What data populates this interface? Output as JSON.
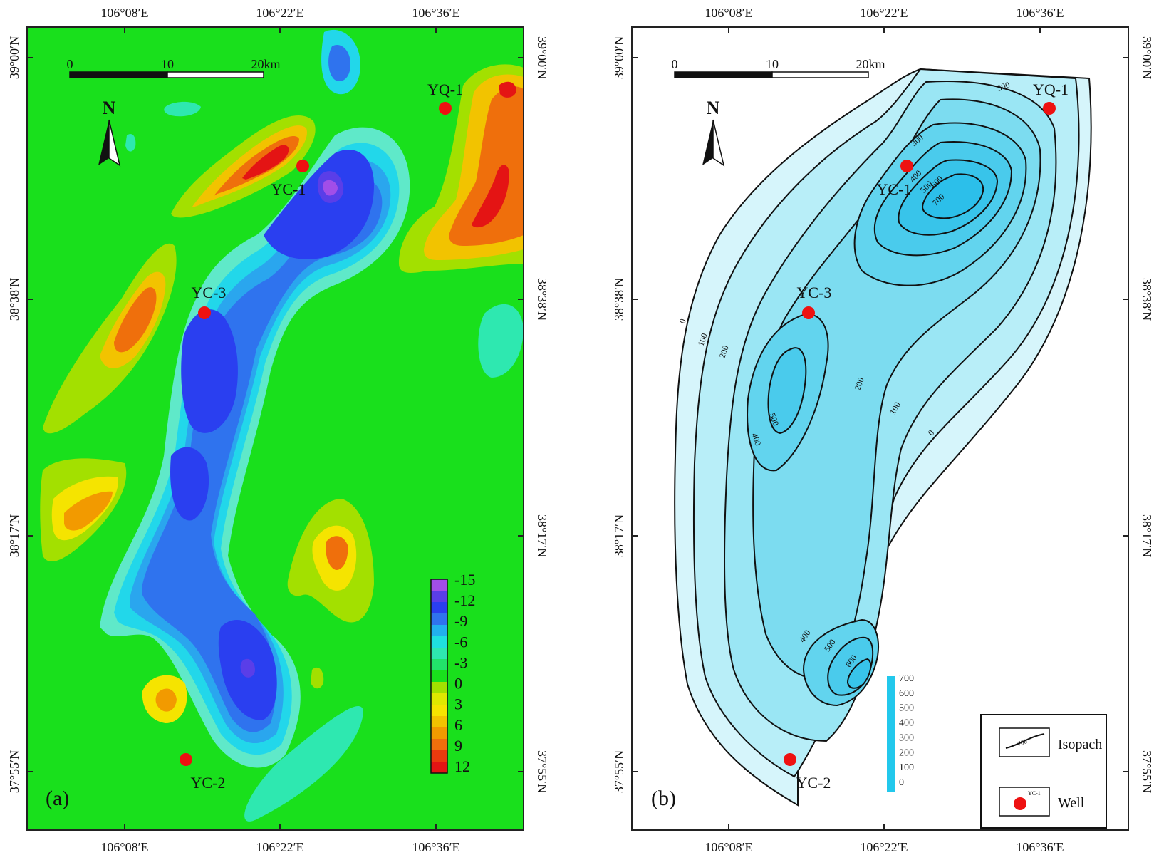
{
  "panels": [
    {
      "id": "a",
      "letter": "(a)",
      "lon_ticks": [
        "106°08′E",
        "106°22′E",
        "106°36′E"
      ],
      "lat_ticks": [
        "39°00′N",
        "38°38′N",
        "38°17′N",
        "37°55′N"
      ],
      "scale": {
        "zero": "0",
        "mid": "10",
        "end": "20km"
      },
      "north": "N",
      "wells": [
        {
          "name": "YC-1"
        },
        {
          "name": "YC-3"
        },
        {
          "name": "YQ-1"
        },
        {
          "name": "YC-2"
        }
      ],
      "colorbar": {
        "labels": [
          "-15",
          "-12",
          "-9",
          "-6",
          "-3",
          "0",
          "3",
          "6",
          "9",
          "12"
        ],
        "colors": [
          "#a24ee8",
          "#5a3ee8",
          "#2a3ff0",
          "#2f73ee",
          "#22b0ee",
          "#1fe0e0",
          "#2ee8b0",
          "#22e26a",
          "#19e01c",
          "#a3e000",
          "#dfe800",
          "#f5e400",
          "#f2c300",
          "#f29a00",
          "#ef6f0c",
          "#ea3a0e",
          "#e41414"
        ]
      }
    },
    {
      "id": "b",
      "letter": "(b)",
      "lon_ticks": [
        "106°08′E",
        "106°22′E",
        "106°36′E"
      ],
      "lat_ticks": [
        "39°00′N",
        "38°38′N",
        "38°17′N",
        "37°55′N"
      ],
      "scale": {
        "zero": "0",
        "mid": "10",
        "end": "20km"
      },
      "north": "N",
      "wells": [
        {
          "name": "YC-1"
        },
        {
          "name": "YC-3"
        },
        {
          "name": "YQ-1"
        },
        {
          "name": "YC-2"
        }
      ],
      "contour_labels": [
        "0",
        "100",
        "200",
        "300",
        "400",
        "500",
        "600",
        "700"
      ],
      "colorbar": {
        "labels": [
          "700",
          "600",
          "500",
          "400",
          "300",
          "200",
          "100",
          "0"
        ],
        "color": "#22c8ec"
      },
      "legend": {
        "isopach": "Isopach",
        "isopach_sample": "700",
        "well": "Well",
        "well_sample": "YC-1"
      }
    }
  ]
}
